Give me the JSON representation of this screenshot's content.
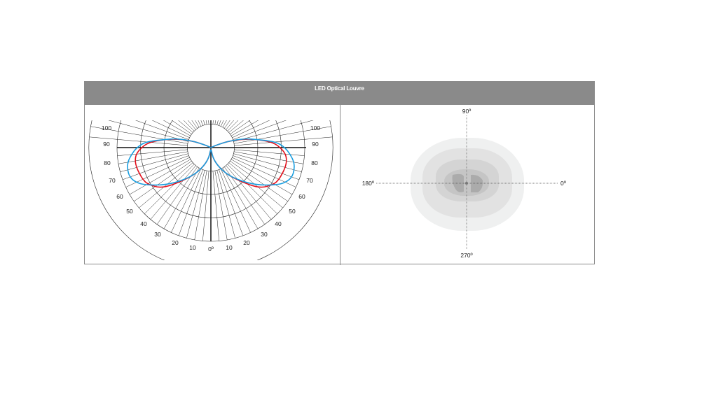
{
  "header": {
    "title": "LED Optical Louvre"
  },
  "chart_data": [
    {
      "type": "polar",
      "title": "",
      "angle_tick_labels_left": [
        "100",
        "90",
        "80",
        "70",
        "60",
        "50",
        "40",
        "30",
        "20",
        "10"
      ],
      "angle_tick_labels_right": [
        "10",
        "20",
        "30",
        "40",
        "50",
        "60",
        "70",
        "80",
        "90",
        "100"
      ],
      "zero_label": "0º",
      "angles_deg": [
        0,
        10,
        20,
        30,
        40,
        50,
        60,
        65,
        70,
        75,
        80,
        85,
        90,
        95,
        100,
        105,
        110,
        115,
        120
      ],
      "series": [
        {
          "color": "#e3101c",
          "values": [
            0,
            0.1,
            0.2,
            0.32,
            0.46,
            0.68,
            0.78,
            0.8,
            0.81,
            0.82,
            0.82,
            0.8,
            0.74,
            0.66,
            0.5,
            0.35,
            0.2,
            0.06,
            0
          ]
        },
        {
          "color": "#1a9ee0",
          "values": [
            0,
            0.1,
            0.2,
            0.32,
            0.45,
            0.62,
            0.8,
            0.88,
            0.92,
            0.92,
            0.9,
            0.85,
            0.79,
            0.7,
            0.5,
            0.37,
            0.2,
            0.06,
            0
          ]
        }
      ],
      "rings": 4,
      "radial_step_deg": 5
    },
    {
      "type": "isolux",
      "axis_labels": {
        "top": "90º",
        "left": "180º",
        "right": "0º",
        "bottom": "270º"
      },
      "contour_colors": [
        "#eff0f0",
        "#e2e2e2",
        "#d4d4d4",
        "#c5c5c5",
        "#ababab"
      ]
    }
  ]
}
